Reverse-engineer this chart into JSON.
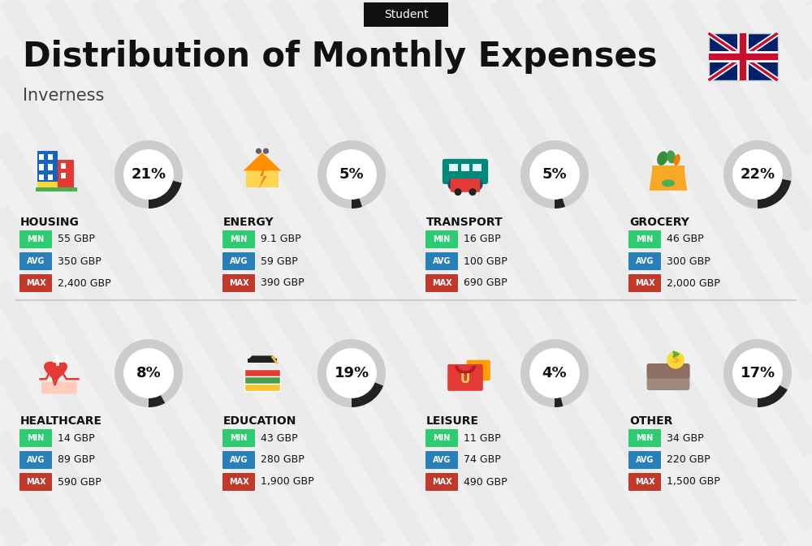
{
  "title": "Distribution of Monthly Expenses",
  "subtitle": "Student",
  "location": "Inverness",
  "bg_color": "#f0f0f0",
  "categories": [
    {
      "name": "HOUSING",
      "percent": 21,
      "min": "55 GBP",
      "avg": "350 GBP",
      "max": "2,400 GBP",
      "row": 0,
      "col": 0
    },
    {
      "name": "ENERGY",
      "percent": 5,
      "min": "9.1 GBP",
      "avg": "59 GBP",
      "max": "390 GBP",
      "row": 0,
      "col": 1
    },
    {
      "name": "TRANSPORT",
      "percent": 5,
      "min": "16 GBP",
      "avg": "100 GBP",
      "max": "690 GBP",
      "row": 0,
      "col": 2
    },
    {
      "name": "GROCERY",
      "percent": 22,
      "min": "46 GBP",
      "avg": "300 GBP",
      "max": "2,000 GBP",
      "row": 0,
      "col": 3
    },
    {
      "name": "HEALTHCARE",
      "percent": 8,
      "min": "14 GBP",
      "avg": "89 GBP",
      "max": "590 GBP",
      "row": 1,
      "col": 0
    },
    {
      "name": "EDUCATION",
      "percent": 19,
      "min": "43 GBP",
      "avg": "280 GBP",
      "max": "1,900 GBP",
      "row": 1,
      "col": 1
    },
    {
      "name": "LEISURE",
      "percent": 4,
      "min": "11 GBP",
      "avg": "74 GBP",
      "max": "490 GBP",
      "row": 1,
      "col": 2
    },
    {
      "name": "OTHER",
      "percent": 17,
      "min": "34 GBP",
      "avg": "220 GBP",
      "max": "1,500 GBP",
      "row": 1,
      "col": 3
    }
  ],
  "min_color": "#2ecc71",
  "avg_color": "#2980b9",
  "max_color": "#c0392b",
  "donut_bg": "#cccccc",
  "donut_fg": "#222222",
  "text_color": "#111111",
  "stripe_color": "#e8e8e8",
  "divider_color": "#cccccc"
}
